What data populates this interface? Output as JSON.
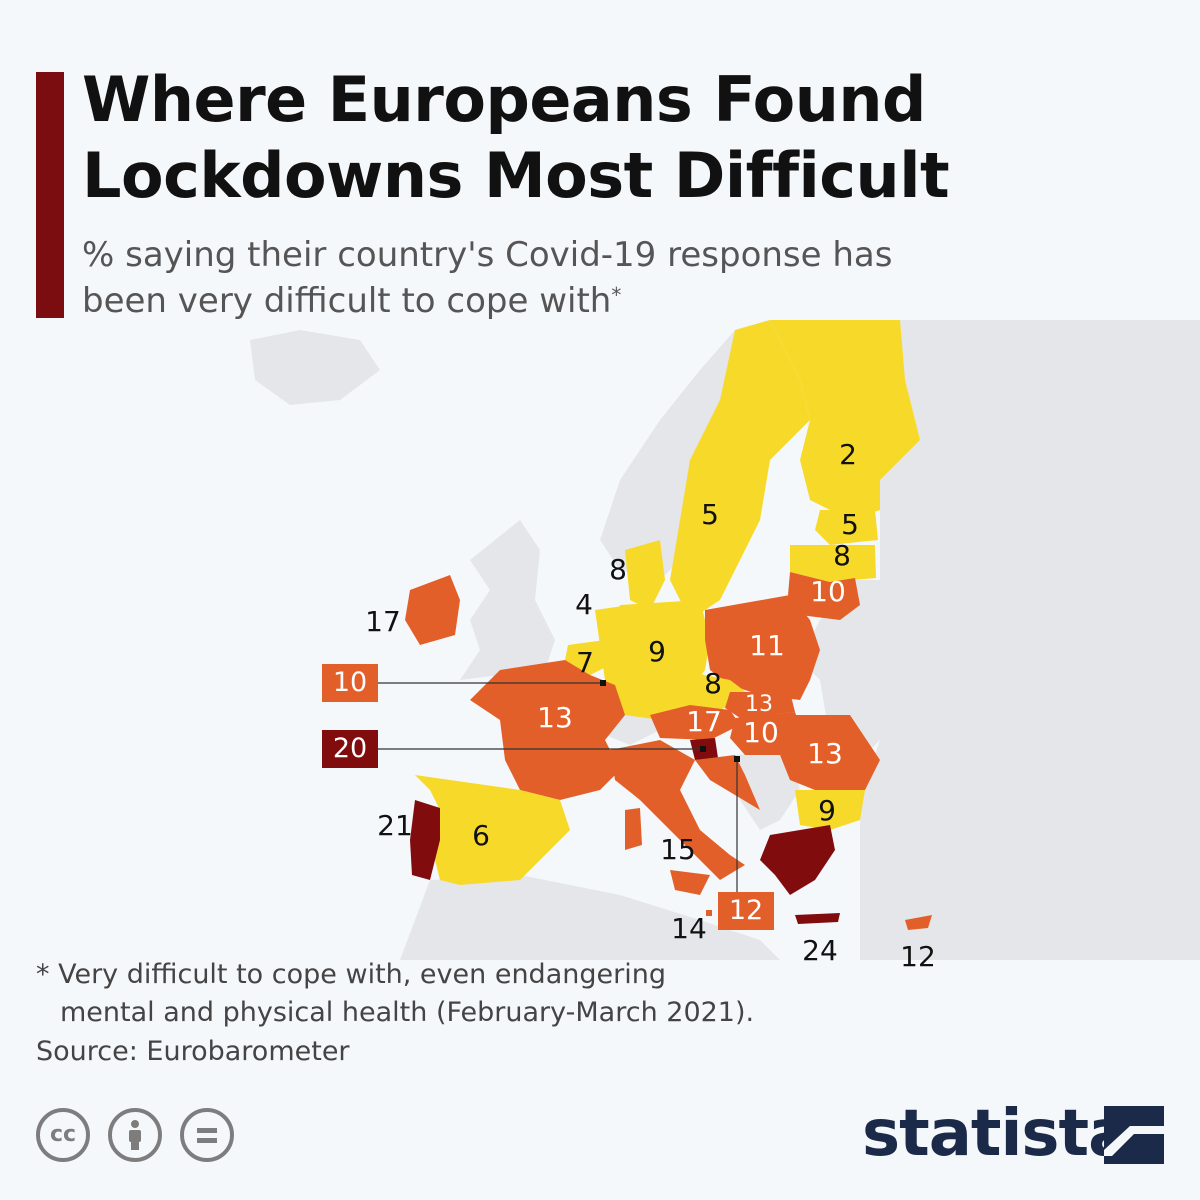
{
  "header": {
    "title": "Where Europeans Found Lockdowns Most Difficult",
    "subtitle": "% saying their country's Covid-19 response has been very difficult to cope with",
    "subtitle_mark": "*"
  },
  "colors": {
    "accent": "#7b0d10",
    "low": "#f7d92a",
    "mid": "#e35f29",
    "high": "#800c0e",
    "land": "#e4e6e9"
  },
  "map": {
    "countries": [
      {
        "name": "Finland",
        "value": "2"
      },
      {
        "name": "Sweden",
        "value": "5"
      },
      {
        "name": "Estonia",
        "value": "5"
      },
      {
        "name": "Latvia",
        "value": "8"
      },
      {
        "name": "Lithuania",
        "value": "10"
      },
      {
        "name": "Denmark",
        "value": "8"
      },
      {
        "name": "Netherlands",
        "value": "4"
      },
      {
        "name": "Ireland",
        "value": "17"
      },
      {
        "name": "Belgium",
        "value": "7"
      },
      {
        "name": "Germany",
        "value": "9"
      },
      {
        "name": "Poland",
        "value": "11"
      },
      {
        "name": "Czechia",
        "value": "8"
      },
      {
        "name": "Slovakia",
        "value": "13"
      },
      {
        "name": "Austria",
        "value": "17"
      },
      {
        "name": "Hungary",
        "value": "10"
      },
      {
        "name": "France",
        "value": "13"
      },
      {
        "name": "Romania",
        "value": "13"
      },
      {
        "name": "Bulgaria",
        "value": "9"
      },
      {
        "name": "Portugal",
        "value": "21"
      },
      {
        "name": "Spain",
        "value": "6"
      },
      {
        "name": "Italy",
        "value": "15"
      },
      {
        "name": "Malta",
        "value": "14"
      },
      {
        "name": "Greece",
        "value": "24"
      },
      {
        "name": "Cyprus",
        "value": "12"
      }
    ],
    "callouts": [
      {
        "name": "Luxembourg",
        "value": "10"
      },
      {
        "name": "Slovenia",
        "value": "20"
      },
      {
        "name": "Croatia",
        "value": "12"
      }
    ]
  },
  "footnote": {
    "line1": "* Very difficult to cope with, even endangering",
    "line2": "mental and physical health (February-March 2021)."
  },
  "source": "Source: Eurobarometer",
  "license_icons": [
    "cc-icon",
    "attribution-icon",
    "no-derivatives-icon"
  ],
  "brand": "statista"
}
